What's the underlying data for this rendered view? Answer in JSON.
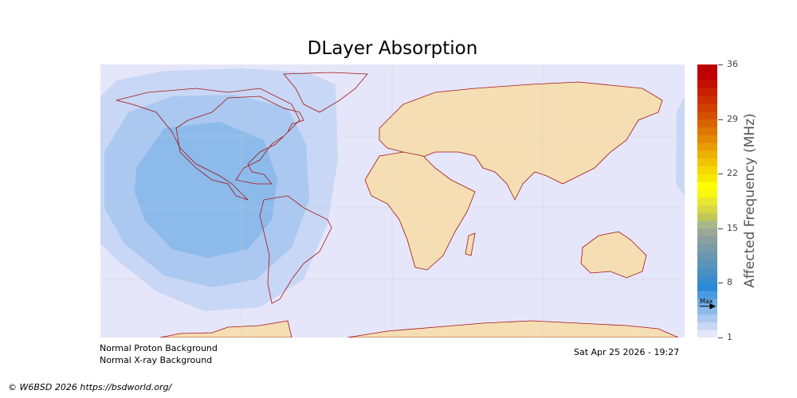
{
  "title": "DLayer Absorption",
  "colorbar": {
    "label": "Affected Frequency (MHz)",
    "ticks": [
      "36",
      "29",
      "22",
      "15",
      "8",
      "1"
    ],
    "min": 1,
    "max": 36,
    "max_marker": "Max",
    "max_value": 5,
    "colors": [
      "#e6e6fa",
      "#c8d7f5",
      "#aac8f0",
      "#8cbaeb",
      "#6eaae6",
      "#4a9ae0",
      "#2a8ad8",
      "#3a8ccc",
      "#4a90c0",
      "#5a94b8",
      "#6a98b0",
      "#7a9ca8",
      "#8aa0a0",
      "#9aa898",
      "#a8b888",
      "#c0c858",
      "#d8d840",
      "#e8e830",
      "#f8f810",
      "#ffff00",
      "#f8e800",
      "#f4d800",
      "#f0c400",
      "#ecb000",
      "#e89c00",
      "#e48800",
      "#e07400",
      "#d86400",
      "#d45000",
      "#d04000",
      "#cc3000",
      "#c82000",
      "#c41000",
      "#c00000",
      "#bb0000"
    ]
  },
  "map": {
    "ocean": "#e6e6fa",
    "land": "#f5deb3",
    "coast": "#a31515",
    "contours": [
      "#c8d7f5",
      "#aac8f0",
      "#8cbaeb"
    ]
  },
  "notes": {
    "proton": "Normal Proton Background",
    "xray": "Normal X-ray Background",
    "timestamp": "Sat Apr 25 2026 - 19:27"
  },
  "copyright": "© W6BSD 2026 https://bsdworld.org/"
}
